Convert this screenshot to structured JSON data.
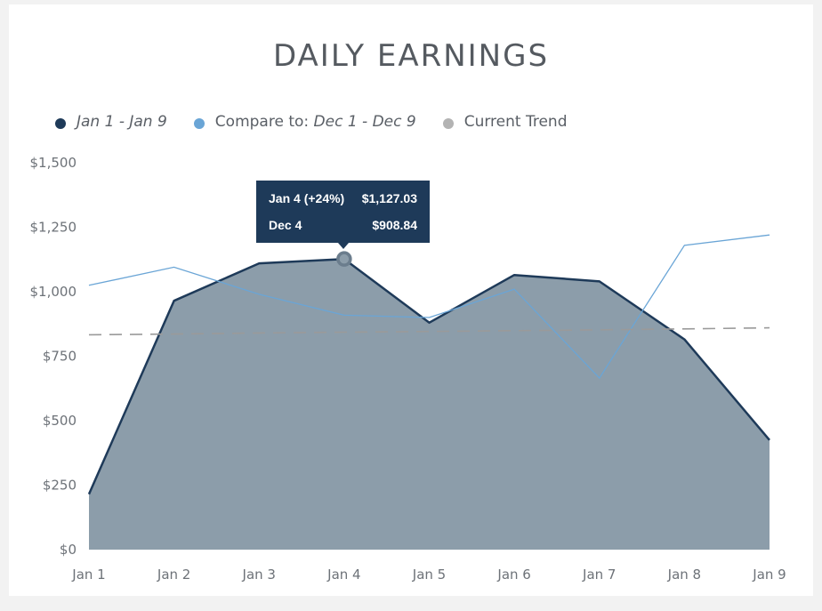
{
  "title": "DAILY EARNINGS",
  "legend": {
    "current": {
      "label": "Jan 1 - Jan 9",
      "color": "#1e3a59"
    },
    "compare": {
      "prefix": "Compare to:",
      "label": "Dec 1 - Dec 9",
      "color": "#6aa5d6"
    },
    "trend": {
      "label": "Current Trend",
      "color": "#b3b3b3"
    }
  },
  "tooltip": {
    "row1_label": "Jan 4 (+24%)",
    "row1_value": "$1,127.03",
    "row2_label": "Dec 4",
    "row2_value": "$908.84"
  },
  "chart_data": {
    "type": "area",
    "title": "DAILY EARNINGS",
    "categories": [
      "Jan 1",
      "Jan 2",
      "Jan 3",
      "Jan 4",
      "Jan 5",
      "Jan 6",
      "Jan 7",
      "Jan 8",
      "Jan 9"
    ],
    "ylim": [
      0,
      1500
    ],
    "yticks": [
      0,
      250,
      500,
      750,
      1000,
      1250,
      1500
    ],
    "ytick_labels": [
      "$0",
      "$250",
      "$500",
      "$750",
      "$1,000",
      "$1,250",
      "$1,500"
    ],
    "grid": false,
    "legend_position": "top-left",
    "series": [
      {
        "name": "Jan 1 - Jan 9",
        "style": "area",
        "color": "#1e3a59",
        "fill": "#8c9daa",
        "values": [
          215,
          965,
          1110,
          1127.03,
          880,
          1065,
          1040,
          815,
          425
        ]
      },
      {
        "name": "Dec 1 - Dec 9",
        "style": "line",
        "color": "#6aa5d6",
        "values": [
          1025,
          1095,
          990,
          908.84,
          900,
          1010,
          665,
          1180,
          1220
        ]
      },
      {
        "name": "Current Trend",
        "style": "dashed",
        "color": "#9a9a9a",
        "values": [
          833,
          836,
          840,
          843,
          846,
          849,
          852,
          856,
          860
        ]
      }
    ],
    "highlight_index": 3
  }
}
